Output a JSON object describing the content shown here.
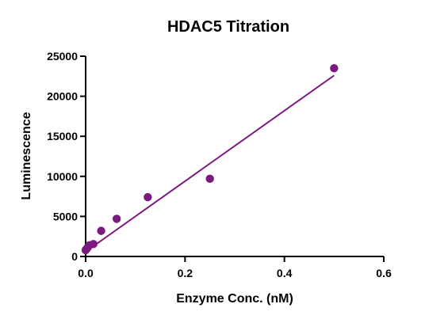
{
  "chart_data": {
    "type": "scatter",
    "title": "HDAC5 Titration",
    "xlabel": "Enzyme Conc. (nM)",
    "ylabel": "Luminescence",
    "xlim": [
      0,
      0.6
    ],
    "ylim": [
      0,
      25000
    ],
    "x_ticks": [
      "0.0",
      "0.2",
      "0.4",
      "0.6"
    ],
    "y_ticks": [
      "0",
      "5000",
      "10000",
      "15000",
      "20000",
      "25000"
    ],
    "grid": false,
    "legend": "none",
    "colors": {
      "marker": "#7b1a7e",
      "fit_line": "#7b1a7e",
      "axis": "#000000"
    },
    "series": [
      {
        "points": [
          {
            "x": 0.0,
            "y": 800
          },
          {
            "x": 0.00195,
            "y": 950
          },
          {
            "x": 0.0039,
            "y": 1100
          },
          {
            "x": 0.0078,
            "y": 1400
          },
          {
            "x": 0.0156,
            "y": 1550
          },
          {
            "x": 0.03125,
            "y": 3200
          },
          {
            "x": 0.0625,
            "y": 4700
          },
          {
            "x": 0.125,
            "y": 7400
          },
          {
            "x": 0.25,
            "y": 9700
          },
          {
            "x": 0.5,
            "y": 23500
          }
        ]
      }
    ],
    "fit_line": {
      "type": "linear",
      "x_range": [
        0,
        0.5
      ],
      "y_start": 600,
      "y_end": 22600
    }
  }
}
